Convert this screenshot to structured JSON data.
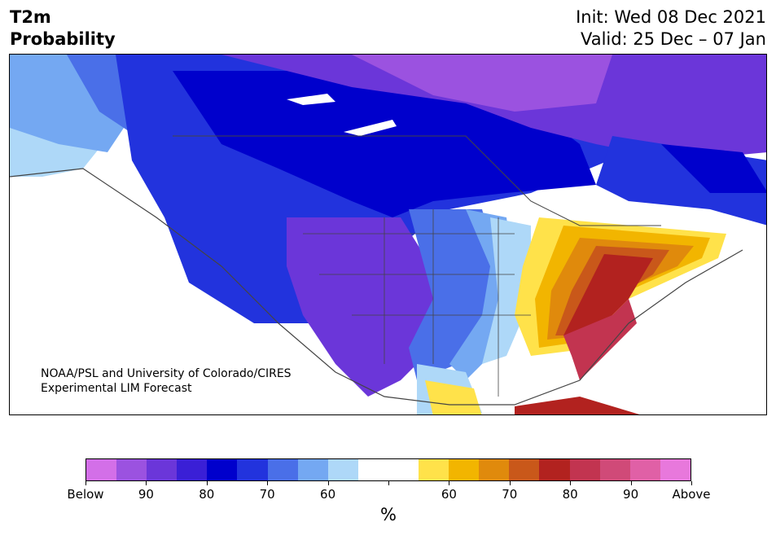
{
  "header": {
    "title_line1": "T2m",
    "title_line2": "Probability",
    "init_text": "Init: Wed 08 Dec 2021",
    "valid_text": "Valid: 25 Dec – 07 Jan"
  },
  "map": {
    "credit_line1": "NOAA/PSL and University of Colorado/CIRES",
    "credit_line2": "Experimental LIM Forecast"
  },
  "colorbar": {
    "colors": [
      "#d36fe8",
      "#9b52e0",
      "#6b36d9",
      "#3a1fd6",
      "#0000cc",
      "#2233dd",
      "#4a6fe8",
      "#74a8f2",
      "#aed8f8",
      "#ffffff",
      "#ffffff",
      "#ffe24a",
      "#f2b500",
      "#e08a0c",
      "#c9581a",
      "#b2221f",
      "#c23450",
      "#d04a78",
      "#e060a6",
      "#e878dc"
    ],
    "tick_labels": [
      "Below",
      "90",
      "80",
      "70",
      "60",
      "",
      "60",
      "70",
      "80",
      "90",
      "Above"
    ],
    "unit": "%"
  }
}
